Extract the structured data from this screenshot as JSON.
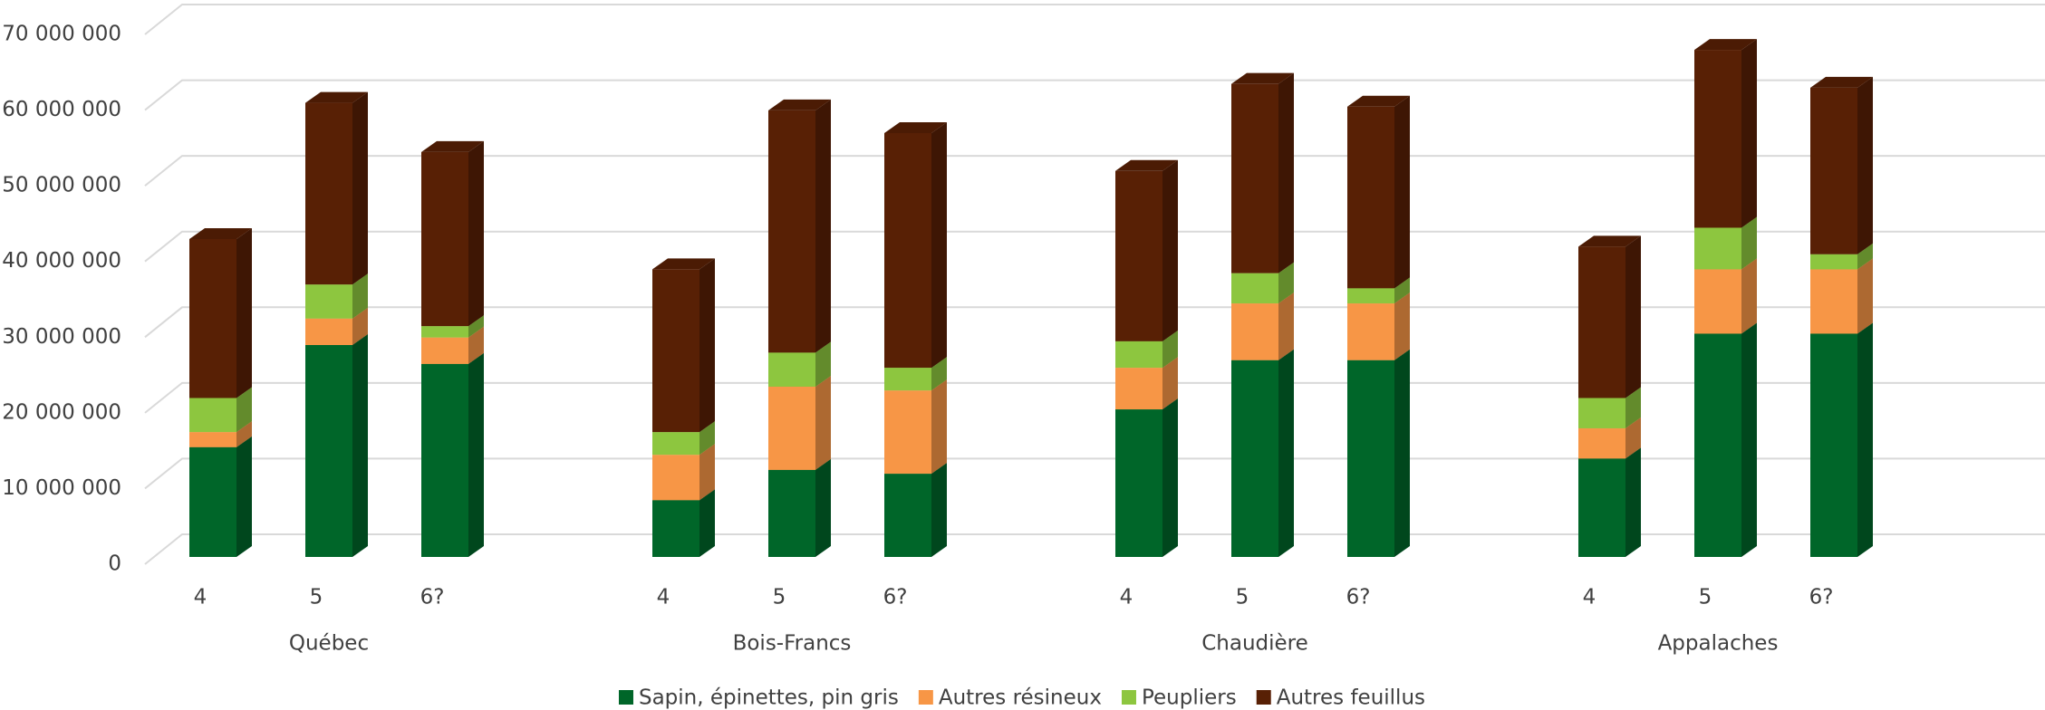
{
  "chart_data": {
    "type": "bar3d-stacked",
    "categories": [
      "4",
      "5",
      "6?",
      "4",
      "5",
      "6?",
      "4",
      "5",
      "6?",
      "4",
      "5",
      "6?"
    ],
    "groups": [
      "Québec",
      "Bois-Francs",
      "Chaudière",
      "Appalaches"
    ],
    "series": [
      {
        "name": "Sapin, épinettes, pin gris",
        "color": "#006629",
        "values": [
          14500000,
          28000000,
          25500000,
          7500000,
          11500000,
          11000000,
          19500000,
          26000000,
          26000000,
          13000000,
          29500000,
          29500000
        ]
      },
      {
        "name": "Autres résineux",
        "color": "#f79646",
        "values": [
          2000000,
          3500000,
          3500000,
          6000000,
          11000000,
          11000000,
          5500000,
          7500000,
          7500000,
          4000000,
          8500000,
          8500000
        ]
      },
      {
        "name": "Peupliers",
        "color": "#8dc63f",
        "values": [
          4500000,
          4500000,
          1500000,
          3000000,
          4500000,
          3000000,
          3500000,
          4000000,
          2000000,
          4000000,
          5500000,
          2000000
        ]
      },
      {
        "name": "Autres feuillus",
        "color": "#582005",
        "values": [
          21000000,
          24000000,
          23000000,
          21500000,
          32000000,
          31000000,
          22500000,
          25000000,
          24000000,
          20000000,
          23500000,
          22000000
        ]
      }
    ],
    "ylim": [
      0,
      70000000
    ],
    "yticks": [
      0,
      {
        "value": 10000000,
        "label": "10 000 000"
      },
      {
        "value": 20000000,
        "label": "20 000 000"
      },
      {
        "value": 30000000,
        "label": "30 000 000"
      },
      {
        "value": 40000000,
        "label": "40 000 000"
      },
      {
        "value": 50000000,
        "label": "50 000 000"
      },
      {
        "value": 60000000,
        "label": "60 000 000"
      },
      {
        "value": 70000000,
        "label": "70 000 000"
      }
    ],
    "grid": true,
    "legend": "bottom"
  }
}
